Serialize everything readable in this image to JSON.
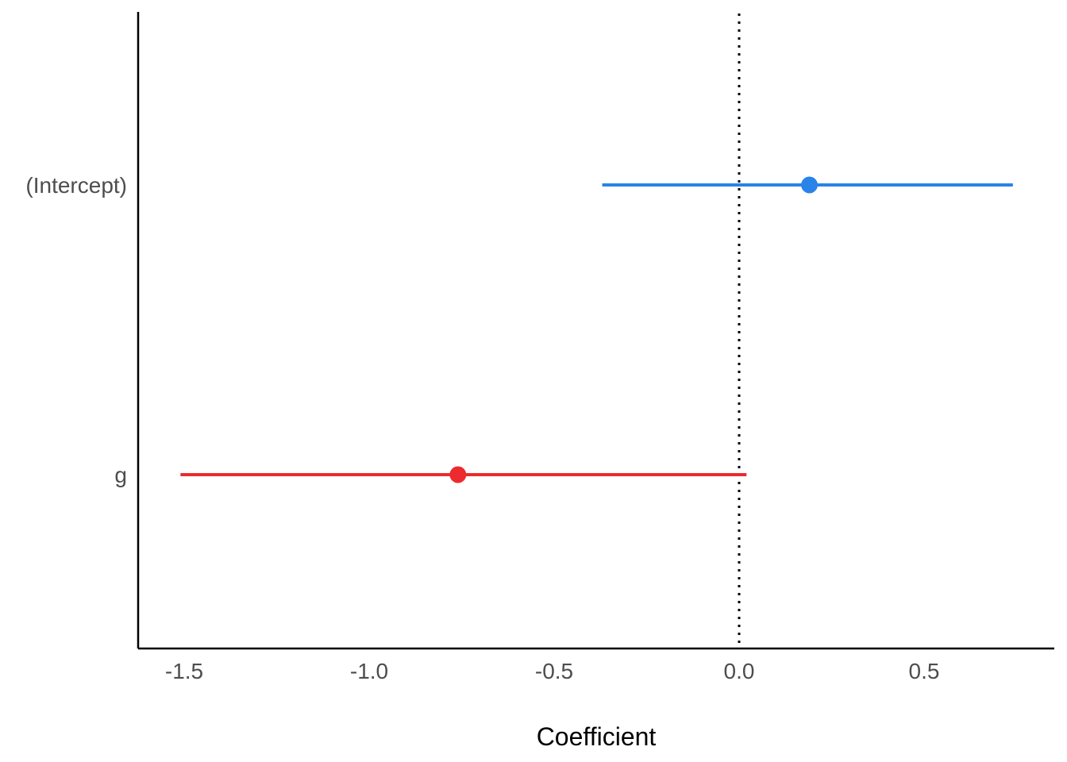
{
  "chart_data": {
    "type": "coefficient_plot",
    "title": "",
    "xlabel": "Coefficient",
    "ylabel": "",
    "xlim": [
      -1.62,
      0.84
    ],
    "x_ticks": [
      -1.5,
      -1.0,
      -0.5,
      0.0,
      0.5
    ],
    "x_tick_labels": [
      "-1.5",
      "-1.0",
      "-0.5",
      "0.0",
      "0.5"
    ],
    "reference_line": {
      "x": 0.0,
      "style": "dotted"
    },
    "grid": false,
    "terms": [
      {
        "term": "(Intercept)",
        "estimate": 0.19,
        "conf_low": -0.37,
        "conf_high": 0.74,
        "color": "#2A83E8"
      },
      {
        "term": "g",
        "estimate": -0.76,
        "conf_low": -1.51,
        "conf_high": 0.02,
        "color": "#EC2A2F"
      }
    ]
  }
}
